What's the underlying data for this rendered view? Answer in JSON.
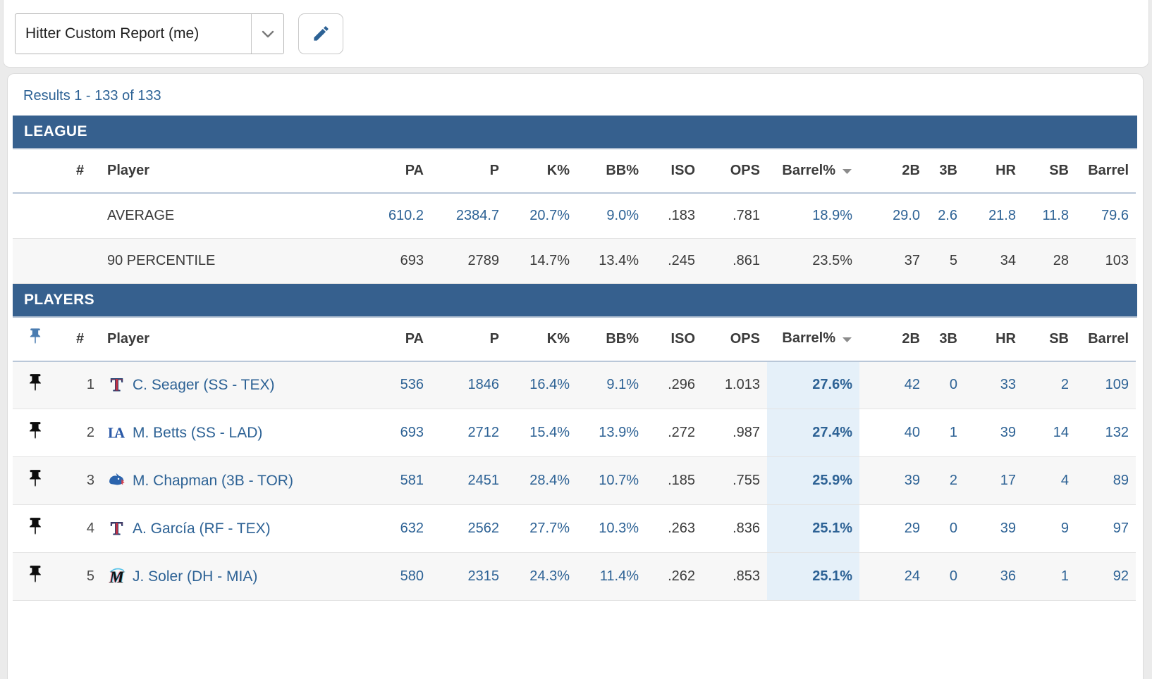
{
  "toolbar": {
    "report_name": "Hitter Custom Report (me)"
  },
  "results_label": "Results 1 - 133 of 133",
  "colors": {
    "section_bar": "#36608e",
    "link_blue": "#2d6295",
    "highlight_column": "#e5f0f9",
    "row_stripe": "#f7f7f7"
  },
  "table": {
    "sections": {
      "league": "LEAGUE",
      "players": "PLAYERS"
    },
    "columns": [
      "#",
      "Player",
      "PA",
      "P",
      "K%",
      "BB%",
      "ISO",
      "OPS",
      "Barrel%",
      "2B",
      "3B",
      "HR",
      "SB",
      "Barrel"
    ],
    "sorted_column": "Barrel%",
    "sort_direction": "desc",
    "league_rows": [
      {
        "label": "AVERAGE",
        "cells": [
          "610.2",
          "2384.7",
          "20.7%",
          "9.0%",
          ".183",
          ".781",
          "18.9%",
          "29.0",
          "2.6",
          "21.8",
          "11.8",
          "79.6"
        ]
      },
      {
        "label": "90 PERCENTILE",
        "cells": [
          "693",
          "2789",
          "14.7%",
          "13.4%",
          ".245",
          ".861",
          "23.5%",
          "37",
          "5",
          "34",
          "28",
          "103"
        ]
      }
    ],
    "player_rows": [
      {
        "rank": "1",
        "team": "TEX",
        "name": "C. Seager (SS - TEX)",
        "cells": [
          "536",
          "1846",
          "16.4%",
          "9.1%",
          ".296",
          "1.013",
          "27.6%",
          "42",
          "0",
          "33",
          "2",
          "109"
        ]
      },
      {
        "rank": "2",
        "team": "LAD",
        "name": "M. Betts (SS - LAD)",
        "cells": [
          "693",
          "2712",
          "15.4%",
          "13.9%",
          ".272",
          ".987",
          "27.4%",
          "40",
          "1",
          "39",
          "14",
          "132"
        ]
      },
      {
        "rank": "3",
        "team": "TOR",
        "name": "M. Chapman (3B - TOR)",
        "cells": [
          "581",
          "2451",
          "28.4%",
          "10.7%",
          ".185",
          ".755",
          "25.9%",
          "39",
          "2",
          "17",
          "4",
          "89"
        ]
      },
      {
        "rank": "4",
        "team": "TEX",
        "name": "A. García (RF - TEX)",
        "cells": [
          "632",
          "2562",
          "27.7%",
          "10.3%",
          ".263",
          ".836",
          "25.1%",
          "29",
          "0",
          "39",
          "9",
          "97"
        ]
      },
      {
        "rank": "5",
        "team": "MIA",
        "name": "J. Soler (DH - MIA)",
        "cells": [
          "580",
          "2315",
          "24.3%",
          "11.4%",
          ".262",
          ".853",
          "25.1%",
          "24",
          "0",
          "36",
          "1",
          "92"
        ]
      }
    ]
  }
}
